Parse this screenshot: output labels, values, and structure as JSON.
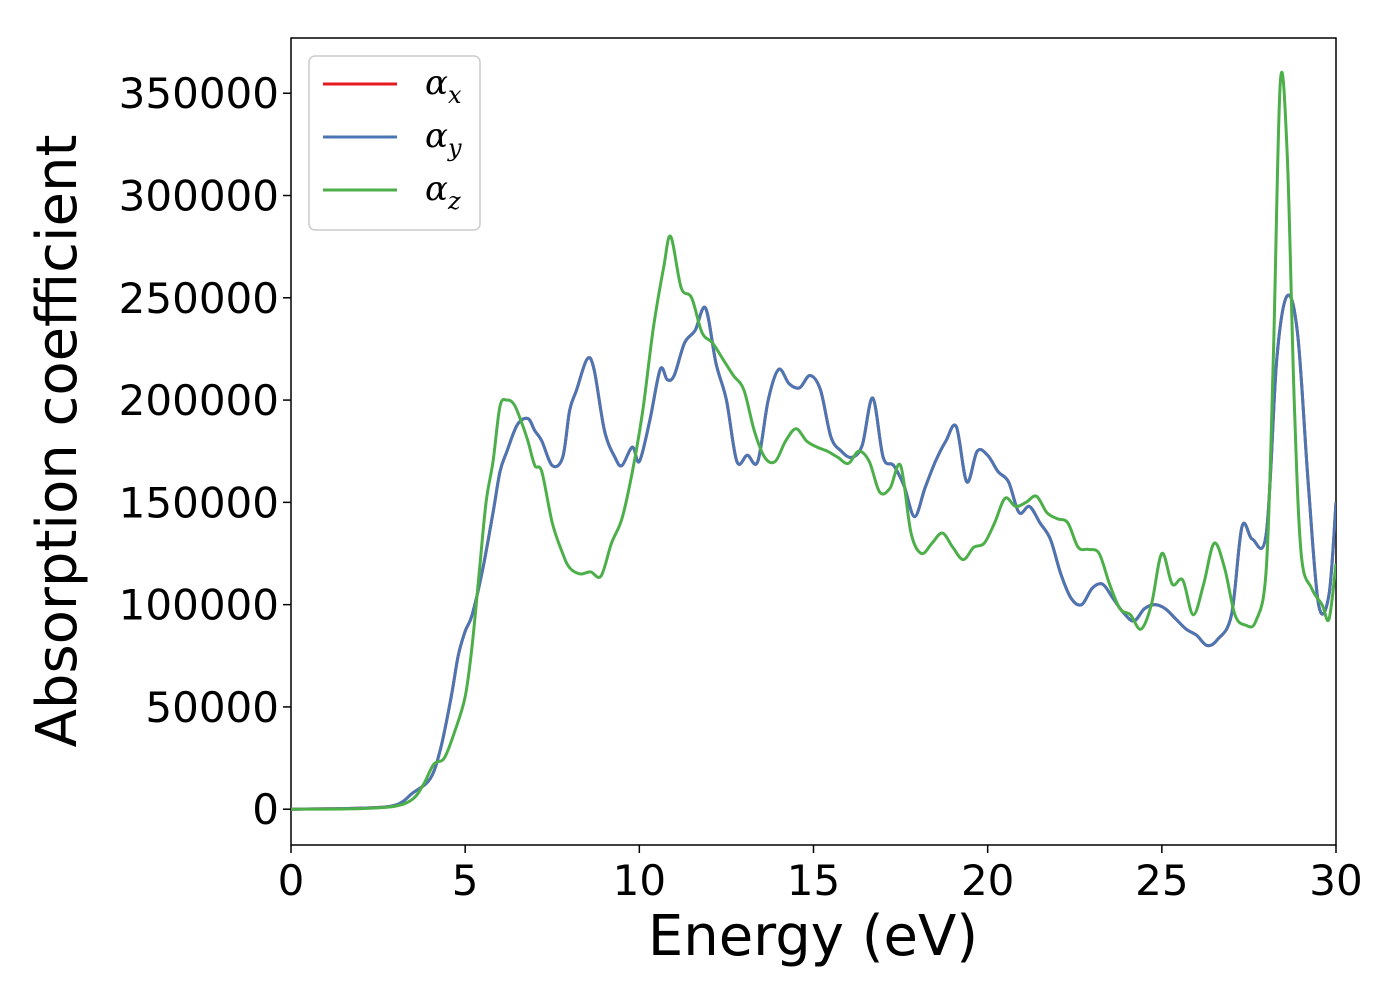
{
  "chart_data": {
    "type": "line",
    "xlabel": "Energy (eV)",
    "ylabel": "Absorption coefficient",
    "xlim": [
      0,
      30
    ],
    "ylim": [
      -17500,
      377000
    ],
    "x_ticks": [
      0,
      5,
      10,
      15,
      20,
      25,
      30
    ],
    "y_ticks": [
      0,
      50000,
      100000,
      150000,
      200000,
      250000,
      300000,
      350000
    ],
    "grid": false,
    "legend_position": "top-left",
    "series": [
      {
        "name": "αx",
        "symbol": "α",
        "subscript": "x",
        "color": "#e41a1c",
        "x": [
          0,
          2,
          3,
          3.5,
          4,
          4.3,
          4.6,
          4.8,
          5,
          5.2,
          5.5,
          5.8,
          6,
          6.2,
          6.5,
          6.8,
          7,
          7.2,
          7.5,
          7.8,
          8,
          8.2,
          8.5,
          8.7,
          9,
          9.3,
          9.5,
          9.8,
          10,
          10.3,
          10.6,
          10.8,
          11,
          11.3,
          11.6,
          11.9,
          12.2,
          12.5,
          12.8,
          13.1,
          13.4,
          13.7,
          14,
          14.3,
          14.6,
          14.9,
          15.2,
          15.5,
          15.8,
          16.1,
          16.4,
          16.7,
          17,
          17.3,
          17.6,
          17.9,
          18.2,
          18.5,
          18.8,
          19.1,
          19.4,
          19.7,
          20,
          20.3,
          20.6,
          20.9,
          21.2,
          21.5,
          21.8,
          22.1,
          22.4,
          22.7,
          23,
          23.3,
          23.6,
          23.9,
          24.2,
          24.5,
          24.8,
          25.1,
          25.4,
          25.7,
          26,
          26.3,
          26.6,
          27,
          27.3,
          27.6,
          28,
          28.3,
          28.6,
          28.9,
          29.2,
          29.5,
          29.8,
          30
        ],
        "values": [
          0,
          500,
          2000,
          8000,
          15000,
          30000,
          55000,
          75000,
          87000,
          95000,
          117000,
          145000,
          165000,
          175000,
          188000,
          191000,
          185000,
          180000,
          168000,
          172000,
          195000,
          205000,
          220000,
          215000,
          185000,
          172000,
          168000,
          177000,
          170000,
          190000,
          215000,
          210000,
          212000,
          228000,
          234000,
          245000,
          218000,
          200000,
          170000,
          173000,
          170000,
          200000,
          215000,
          208000,
          206000,
          212000,
          205000,
          182000,
          175000,
          172000,
          178000,
          201000,
          172000,
          168000,
          158000,
          143000,
          157000,
          170000,
          180000,
          187000,
          160000,
          175000,
          173000,
          165000,
          160000,
          145000,
          148000,
          140000,
          132000,
          115000,
          103000,
          100000,
          108000,
          110000,
          103000,
          96000,
          92000,
          98000,
          100000,
          98000,
          93000,
          88000,
          85000,
          80000,
          83000,
          95000,
          138000,
          132000,
          135000,
          220000,
          251000,
          232000,
          160000,
          100000,
          105000,
          150000
        ]
      },
      {
        "name": "αy",
        "symbol": "α",
        "subscript": "y",
        "color": "#4a77b4",
        "x": [
          0,
          2,
          3,
          3.5,
          4,
          4.3,
          4.6,
          4.8,
          5,
          5.2,
          5.5,
          5.8,
          6,
          6.2,
          6.5,
          6.8,
          7,
          7.2,
          7.5,
          7.8,
          8,
          8.2,
          8.5,
          8.7,
          9,
          9.3,
          9.5,
          9.8,
          10,
          10.3,
          10.6,
          10.8,
          11,
          11.3,
          11.6,
          11.9,
          12.2,
          12.5,
          12.8,
          13.1,
          13.4,
          13.7,
          14,
          14.3,
          14.6,
          14.9,
          15.2,
          15.5,
          15.8,
          16.1,
          16.4,
          16.7,
          17,
          17.3,
          17.6,
          17.9,
          18.2,
          18.5,
          18.8,
          19.1,
          19.4,
          19.7,
          20,
          20.3,
          20.6,
          20.9,
          21.2,
          21.5,
          21.8,
          22.1,
          22.4,
          22.7,
          23,
          23.3,
          23.6,
          23.9,
          24.2,
          24.5,
          24.8,
          25.1,
          25.4,
          25.7,
          26,
          26.3,
          26.6,
          27,
          27.3,
          27.6,
          28,
          28.3,
          28.6,
          28.9,
          29.2,
          29.5,
          29.8,
          30
        ],
        "values": [
          0,
          500,
          2000,
          8000,
          15000,
          30000,
          55000,
          75000,
          87000,
          95000,
          117000,
          145000,
          165000,
          175000,
          188000,
          191000,
          185000,
          180000,
          168000,
          172000,
          195000,
          205000,
          220000,
          215000,
          185000,
          172000,
          168000,
          177000,
          170000,
          190000,
          215000,
          210000,
          212000,
          228000,
          234000,
          245000,
          218000,
          200000,
          170000,
          173000,
          170000,
          200000,
          215000,
          208000,
          206000,
          212000,
          205000,
          182000,
          175000,
          172000,
          178000,
          201000,
          172000,
          168000,
          158000,
          143000,
          157000,
          170000,
          180000,
          187000,
          160000,
          175000,
          173000,
          165000,
          160000,
          145000,
          148000,
          140000,
          132000,
          115000,
          103000,
          100000,
          108000,
          110000,
          103000,
          96000,
          92000,
          98000,
          100000,
          98000,
          93000,
          88000,
          85000,
          80000,
          83000,
          95000,
          138000,
          132000,
          135000,
          220000,
          251000,
          232000,
          160000,
          100000,
          105000,
          150000
        ]
      },
      {
        "name": "αz",
        "symbol": "α",
        "subscript": "z",
        "color": "#4daf4a",
        "x": [
          0,
          2,
          3,
          3.5,
          3.8,
          4.1,
          4.4,
          4.7,
          5,
          5.2,
          5.4,
          5.6,
          5.8,
          6,
          6.2,
          6.4,
          6.6,
          6.8,
          7,
          7.2,
          7.5,
          7.8,
          8,
          8.3,
          8.6,
          8.9,
          9.2,
          9.5,
          9.8,
          10.1,
          10.4,
          10.7,
          10.9,
          11.2,
          11.5,
          11.8,
          12.1,
          12.4,
          12.7,
          13,
          13.3,
          13.6,
          13.9,
          14.2,
          14.5,
          14.8,
          15.1,
          15.4,
          15.7,
          16,
          16.3,
          16.6,
          16.9,
          17.2,
          17.5,
          17.8,
          18.1,
          18.4,
          18.7,
          19,
          19.3,
          19.6,
          19.9,
          20.2,
          20.5,
          20.8,
          21.1,
          21.4,
          21.7,
          22,
          22.3,
          22.6,
          22.9,
          23.2,
          23.5,
          23.8,
          24.1,
          24.4,
          24.7,
          25,
          25.3,
          25.6,
          25.9,
          26.2,
          26.5,
          26.8,
          27.1,
          27.4,
          27.7,
          28,
          28.2,
          28.4,
          28.6,
          28.8,
          29,
          29.3,
          29.6,
          29.8,
          30
        ],
        "values": [
          0,
          300,
          1500,
          5000,
          12000,
          22000,
          25000,
          38000,
          55000,
          80000,
          115000,
          150000,
          170000,
          197000,
          200000,
          198000,
          190000,
          180000,
          168000,
          165000,
          140000,
          125000,
          118000,
          115000,
          116000,
          114000,
          130000,
          142000,
          165000,
          195000,
          235000,
          265000,
          280000,
          255000,
          250000,
          233000,
          228000,
          220000,
          212000,
          205000,
          185000,
          172000,
          170000,
          180000,
          186000,
          180000,
          177000,
          175000,
          172000,
          169000,
          175000,
          170000,
          155000,
          157000,
          168000,
          135000,
          125000,
          130000,
          135000,
          128000,
          122000,
          128000,
          130000,
          140000,
          152000,
          148000,
          150000,
          153000,
          145000,
          142000,
          140000,
          128000,
          127000,
          125000,
          110000,
          98000,
          95000,
          88000,
          100000,
          125000,
          110000,
          112000,
          95000,
          110000,
          130000,
          118000,
          95000,
          90000,
          92000,
          118000,
          220000,
          355000,
          320000,
          200000,
          125000,
          108000,
          100000,
          93000,
          120000
        ]
      }
    ]
  }
}
